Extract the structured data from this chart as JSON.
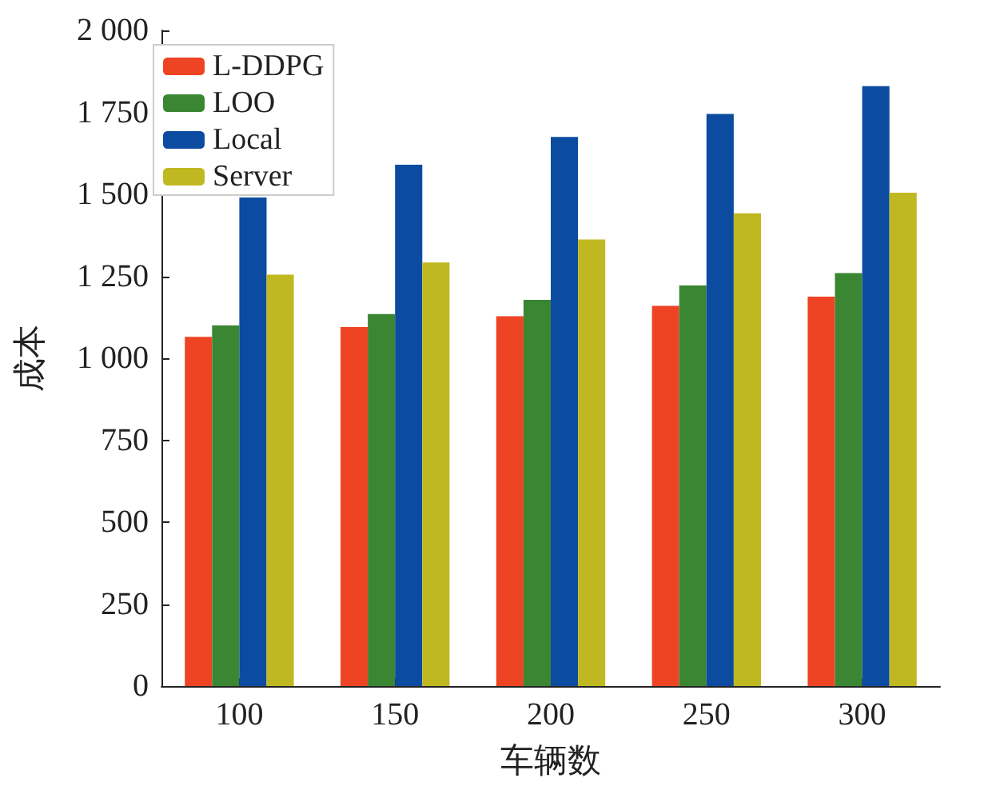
{
  "chart_data": {
    "type": "bar",
    "xlabel": "车辆数",
    "ylabel": "成本",
    "categories": [
      "100",
      "150",
      "200",
      "250",
      "300"
    ],
    "series": [
      {
        "name": "L-DDPG",
        "color": "#ee4423",
        "values": [
          1065,
          1095,
          1128,
          1160,
          1188
        ]
      },
      {
        "name": "LOO",
        "color": "#3a8632",
        "values": [
          1100,
          1135,
          1178,
          1222,
          1260
        ]
      },
      {
        "name": "Local",
        "color": "#0c4ca0",
        "values": [
          1490,
          1590,
          1675,
          1745,
          1830
        ]
      },
      {
        "name": "Server",
        "color": "#c0b820",
        "values": [
          1255,
          1292,
          1362,
          1442,
          1505
        ]
      }
    ],
    "ylim": [
      0,
      2000
    ],
    "yticks": [
      0,
      250,
      500,
      750,
      {
        "value": 1000,
        "label": "1 000"
      },
      {
        "value": 1250,
        "label": "1 250"
      },
      {
        "value": 1500,
        "label": "1 500"
      },
      {
        "value": 1750,
        "label": "1 750"
      },
      {
        "value": 2000,
        "label": "2 000"
      }
    ],
    "grid": false,
    "legend": "top left"
  }
}
